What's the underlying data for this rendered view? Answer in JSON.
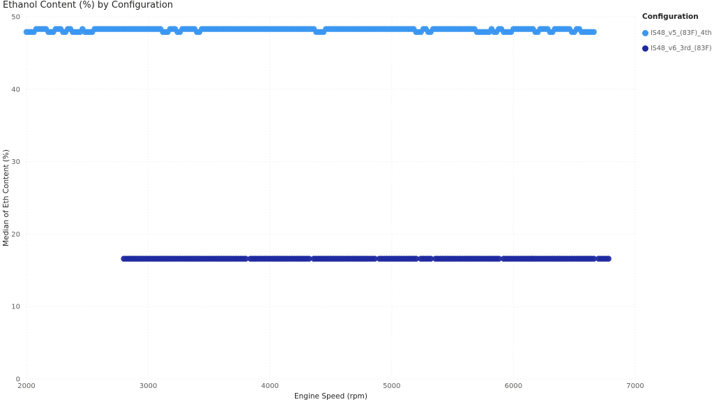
{
  "chart_data": {
    "type": "scatter",
    "title": "Ethanol Content (%) by Configuration",
    "xlabel": "Engine Speed (rpm)",
    "ylabel": "Median of Eth Content (%)",
    "xlim": [
      2000,
      7000
    ],
    "ylim": [
      0,
      50
    ],
    "xticks": [
      "2000",
      "3000",
      "4000",
      "5000",
      "6000",
      "7000"
    ],
    "yticks": [
      "0",
      "10",
      "20",
      "30",
      "40",
      "50"
    ],
    "grid": true,
    "legend_title": "Configuration",
    "legend_position": "top-right",
    "series": [
      {
        "name": "IS48_v5_(83F)_4th",
        "color": "#3a96f0",
        "x_start": 2000,
        "x_end": 6660,
        "x_step": 20,
        "y_values": [
          48.3,
          47.9
        ],
        "dip_ranges": [
          [
            2000,
            2060
          ],
          [
            2180,
            2230
          ],
          [
            2300,
            2330
          ],
          [
            2380,
            2440
          ],
          [
            2480,
            2540
          ],
          [
            3110,
            3160
          ],
          [
            3240,
            3270
          ],
          [
            3400,
            3430
          ],
          [
            4370,
            4440
          ],
          [
            5200,
            5250
          ],
          [
            5300,
            5330
          ],
          [
            5700,
            5800
          ],
          [
            5830,
            5860
          ],
          [
            5920,
            5990
          ],
          [
            6180,
            6210
          ],
          [
            6300,
            6320
          ],
          [
            6470,
            6500
          ],
          [
            6560,
            6660
          ]
        ]
      },
      {
        "name": "IS48_v6_3rd_(83F)",
        "color": "#1f2aa0",
        "x_start": 2800,
        "x_end": 6790,
        "x_step": 20,
        "y_values": [
          16.6
        ],
        "gap_ranges": [
          [
            3810,
            3820
          ],
          [
            4330,
            4340
          ],
          [
            4880,
            4890
          ],
          [
            5210,
            5220
          ],
          [
            5330,
            5340
          ],
          [
            5890,
            5900
          ],
          [
            6670,
            6680
          ]
        ]
      }
    ]
  }
}
